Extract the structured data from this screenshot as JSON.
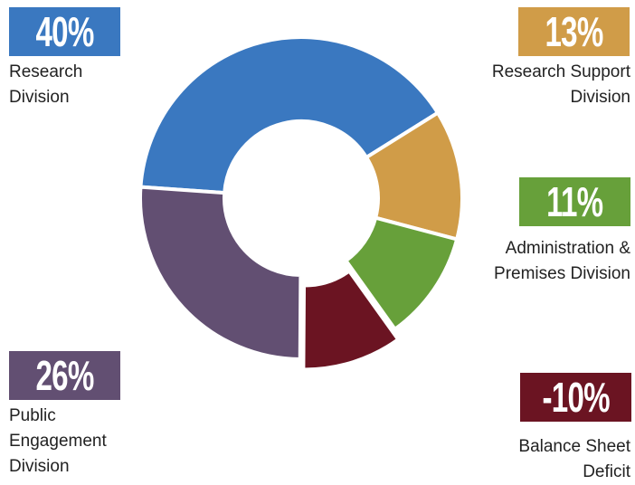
{
  "chart_data": {
    "type": "donut",
    "categories": [
      "Research Division",
      "Research Support Division",
      "Administration & Premises Division",
      "Balance Sheet Deficit",
      "Public Engagement Division"
    ],
    "values": [
      40,
      13,
      11,
      -10,
      26
    ],
    "value_labels": [
      "40%",
      "13%",
      "11%",
      "-10%",
      "26%"
    ],
    "colors": [
      "#3a78c0",
      "#d09c48",
      "#67a03a",
      "#6b1422",
      "#624f72"
    ]
  }
}
